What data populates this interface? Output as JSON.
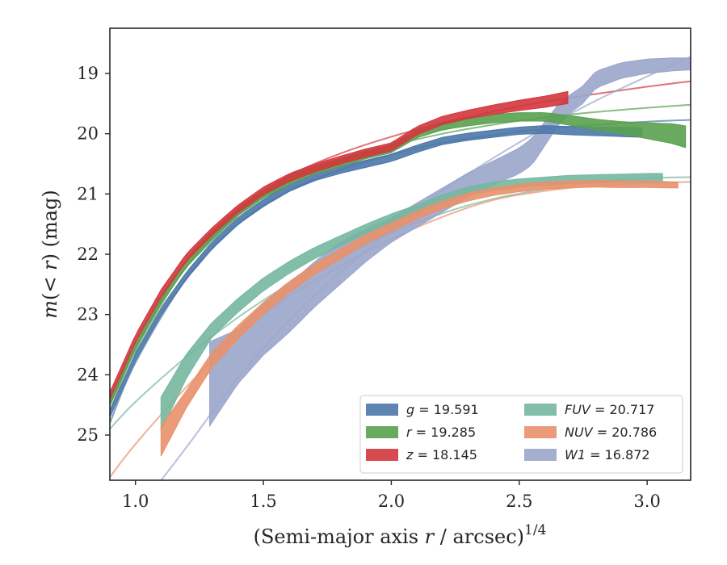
{
  "chart_data": {
    "type": "line",
    "xlabel": "(Semi-major axis r / arcsec)",
    "xlabel_italic_part": "r",
    "xlabel_exponent": "1/4",
    "ylabel": "m(< r) (mag)",
    "xlim": [
      0.9,
      3.17
    ],
    "ylim": [
      25.75,
      18.25
    ],
    "y_inverted": true,
    "x_ticks": [
      1.0,
      1.5,
      2.0,
      2.5,
      3.0
    ],
    "x_tick_labels": [
      "1.0",
      "1.5",
      "2.0",
      "2.5",
      "3.0"
    ],
    "y_ticks": [
      19,
      20,
      21,
      22,
      23,
      24,
      25
    ],
    "y_tick_labels": [
      "19",
      "20",
      "21",
      "22",
      "23",
      "24",
      "25"
    ],
    "grid": false,
    "legend_position": "lower-right",
    "legend_columns": 2,
    "series": [
      {
        "band": "g",
        "value": "19.591",
        "color": "#4c78a8",
        "profile": [
          [
            0.9,
            24.65
          ],
          [
            1.0,
            23.7
          ],
          [
            1.1,
            22.95
          ],
          [
            1.2,
            22.35
          ],
          [
            1.3,
            21.85
          ],
          [
            1.4,
            21.45
          ],
          [
            1.5,
            21.15
          ],
          [
            1.6,
            20.9
          ],
          [
            1.7,
            20.72
          ],
          [
            1.8,
            20.6
          ],
          [
            1.9,
            20.5
          ],
          [
            2.0,
            20.4
          ],
          [
            2.1,
            20.25
          ],
          [
            2.2,
            20.12
          ],
          [
            2.3,
            20.05
          ],
          [
            2.4,
            20.0
          ],
          [
            2.5,
            19.95
          ],
          [
            2.6,
            19.93
          ],
          [
            2.7,
            19.95
          ],
          [
            2.8,
            19.96
          ],
          [
            2.9,
            19.97
          ],
          [
            2.98,
            19.98
          ]
        ],
        "halfwidth": [
          [
            0.9,
            0.06
          ],
          [
            2.5,
            0.06
          ],
          [
            2.98,
            0.08
          ]
        ],
        "model": [
          [
            0.9,
            24.8
          ],
          [
            1.0,
            23.8
          ],
          [
            1.2,
            22.4
          ],
          [
            1.4,
            21.5
          ],
          [
            1.6,
            20.95
          ],
          [
            1.8,
            20.6
          ],
          [
            2.0,
            20.35
          ],
          [
            2.2,
            20.15
          ],
          [
            2.4,
            20.02
          ],
          [
            2.6,
            19.92
          ],
          [
            2.8,
            19.85
          ],
          [
            3.0,
            19.8
          ],
          [
            3.17,
            19.77
          ]
        ]
      },
      {
        "band": "r",
        "value": "19.285",
        "color": "#59a14f",
        "profile": [
          [
            0.9,
            24.45
          ],
          [
            1.0,
            23.5
          ],
          [
            1.1,
            22.75
          ],
          [
            1.2,
            22.15
          ],
          [
            1.3,
            21.7
          ],
          [
            1.4,
            21.3
          ],
          [
            1.5,
            21.0
          ],
          [
            1.6,
            20.78
          ],
          [
            1.7,
            20.6
          ],
          [
            1.8,
            20.48
          ],
          [
            1.9,
            20.35
          ],
          [
            2.0,
            20.25
          ],
          [
            2.1,
            20.0
          ],
          [
            2.2,
            19.87
          ],
          [
            2.3,
            19.8
          ],
          [
            2.4,
            19.75
          ],
          [
            2.5,
            19.72
          ],
          [
            2.6,
            19.72
          ],
          [
            2.7,
            19.78
          ],
          [
            2.8,
            19.85
          ],
          [
            2.9,
            19.9
          ],
          [
            3.0,
            19.95
          ],
          [
            3.1,
            20.0
          ],
          [
            3.15,
            20.05
          ]
        ],
        "halfwidth": [
          [
            0.9,
            0.06
          ],
          [
            2.6,
            0.07
          ],
          [
            2.9,
            0.1
          ],
          [
            3.15,
            0.18
          ]
        ],
        "model": [
          [
            0.9,
            24.6
          ],
          [
            1.0,
            23.6
          ],
          [
            1.2,
            22.2
          ],
          [
            1.4,
            21.35
          ],
          [
            1.6,
            20.8
          ],
          [
            1.8,
            20.45
          ],
          [
            2.0,
            20.2
          ],
          [
            2.2,
            20.0
          ],
          [
            2.4,
            19.85
          ],
          [
            2.6,
            19.73
          ],
          [
            2.8,
            19.64
          ],
          [
            3.0,
            19.57
          ],
          [
            3.17,
            19.52
          ]
        ]
      },
      {
        "band": "z",
        "value": "18.145",
        "color": "#d1373d",
        "profile": [
          [
            0.9,
            24.35
          ],
          [
            1.0,
            23.4
          ],
          [
            1.1,
            22.65
          ],
          [
            1.2,
            22.05
          ],
          [
            1.3,
            21.62
          ],
          [
            1.4,
            21.25
          ],
          [
            1.5,
            20.95
          ],
          [
            1.6,
            20.73
          ],
          [
            1.7,
            20.57
          ],
          [
            1.8,
            20.44
          ],
          [
            1.9,
            20.32
          ],
          [
            2.0,
            20.22
          ],
          [
            2.1,
            19.95
          ],
          [
            2.2,
            19.78
          ],
          [
            2.3,
            19.68
          ],
          [
            2.4,
            19.6
          ],
          [
            2.5,
            19.53
          ],
          [
            2.6,
            19.47
          ],
          [
            2.69,
            19.4
          ]
        ],
        "halfwidth": [
          [
            0.9,
            0.06
          ],
          [
            2.3,
            0.07
          ],
          [
            2.69,
            0.1
          ]
        ],
        "model": [
          [
            0.9,
            24.5
          ],
          [
            1.0,
            23.55
          ],
          [
            1.2,
            22.1
          ],
          [
            1.4,
            21.25
          ],
          [
            1.6,
            20.7
          ],
          [
            1.8,
            20.33
          ],
          [
            2.0,
            20.05
          ],
          [
            2.2,
            19.82
          ],
          [
            2.4,
            19.63
          ],
          [
            2.6,
            19.47
          ],
          [
            2.8,
            19.34
          ],
          [
            3.0,
            19.22
          ],
          [
            3.17,
            19.13
          ]
        ]
      },
      {
        "band": "FUV",
        "value": "20.717",
        "color": "#76b7a0",
        "profile": [
          [
            1.1,
            24.65
          ],
          [
            1.2,
            23.85
          ],
          [
            1.3,
            23.25
          ],
          [
            1.4,
            22.85
          ],
          [
            1.5,
            22.5
          ],
          [
            1.6,
            22.22
          ],
          [
            1.7,
            21.98
          ],
          [
            1.8,
            21.78
          ],
          [
            1.9,
            21.58
          ],
          [
            2.0,
            21.4
          ],
          [
            2.1,
            21.25
          ],
          [
            2.2,
            21.08
          ],
          [
            2.3,
            20.95
          ],
          [
            2.4,
            20.87
          ],
          [
            2.5,
            20.82
          ],
          [
            2.6,
            20.79
          ],
          [
            2.7,
            20.76
          ],
          [
            2.8,
            20.75
          ],
          [
            2.9,
            20.74
          ],
          [
            3.0,
            20.73
          ],
          [
            3.06,
            20.73
          ]
        ],
        "halfwidth": [
          [
            1.1,
            0.28
          ],
          [
            1.3,
            0.12
          ],
          [
            1.6,
            0.1
          ],
          [
            2.0,
            0.07
          ],
          [
            3.06,
            0.07
          ]
        ],
        "model": [
          [
            0.9,
            24.9
          ],
          [
            1.0,
            24.45
          ],
          [
            1.2,
            23.7
          ],
          [
            1.4,
            23.05
          ],
          [
            1.6,
            22.5
          ],
          [
            1.8,
            22.05
          ],
          [
            2.0,
            21.65
          ],
          [
            2.2,
            21.32
          ],
          [
            2.4,
            21.08
          ],
          [
            2.6,
            20.92
          ],
          [
            2.8,
            20.8
          ],
          [
            3.0,
            20.74
          ],
          [
            3.17,
            20.72
          ]
        ]
      },
      {
        "band": "NUV",
        "value": "20.786",
        "color": "#e8916b",
        "profile": [
          [
            1.1,
            25.1
          ],
          [
            1.2,
            24.4
          ],
          [
            1.3,
            23.75
          ],
          [
            1.4,
            23.3
          ],
          [
            1.5,
            22.9
          ],
          [
            1.6,
            22.55
          ],
          [
            1.7,
            22.25
          ],
          [
            1.8,
            22.0
          ],
          [
            1.9,
            21.75
          ],
          [
            2.0,
            21.55
          ],
          [
            2.1,
            21.35
          ],
          [
            2.2,
            21.18
          ],
          [
            2.3,
            21.05
          ],
          [
            2.4,
            20.96
          ],
          [
            2.5,
            20.9
          ],
          [
            2.6,
            20.86
          ],
          [
            2.7,
            20.84
          ],
          [
            2.8,
            20.83
          ],
          [
            2.9,
            20.84
          ],
          [
            3.0,
            20.84
          ],
          [
            3.12,
            20.85
          ]
        ],
        "halfwidth": [
          [
            1.1,
            0.25
          ],
          [
            1.2,
            0.14
          ],
          [
            1.5,
            0.1
          ],
          [
            2.0,
            0.07
          ],
          [
            3.12,
            0.05
          ]
        ],
        "model": [
          [
            0.9,
            25.7
          ],
          [
            1.0,
            25.15
          ],
          [
            1.2,
            24.2
          ],
          [
            1.4,
            23.35
          ],
          [
            1.6,
            22.7
          ],
          [
            1.8,
            22.2
          ],
          [
            2.0,
            21.75
          ],
          [
            2.2,
            21.38
          ],
          [
            2.4,
            21.1
          ],
          [
            2.6,
            20.95
          ],
          [
            2.8,
            20.86
          ],
          [
            3.0,
            20.82
          ],
          [
            3.17,
            20.8
          ]
        ]
      },
      {
        "band": "W1",
        "value": "16.872",
        "color": "#9aa6cb",
        "profile": [
          [
            1.29,
            24.15
          ],
          [
            1.4,
            23.7
          ],
          [
            1.5,
            23.25
          ],
          [
            1.6,
            22.9
          ],
          [
            1.7,
            22.5
          ],
          [
            1.8,
            22.15
          ],
          [
            1.9,
            21.85
          ],
          [
            2.0,
            21.6
          ],
          [
            2.1,
            21.35
          ],
          [
            2.2,
            21.1
          ],
          [
            2.3,
            20.85
          ],
          [
            2.4,
            20.65
          ],
          [
            2.5,
            20.45
          ],
          [
            2.55,
            20.3
          ],
          [
            2.6,
            20.0
          ],
          [
            2.65,
            19.7
          ],
          [
            2.7,
            19.5
          ],
          [
            2.75,
            19.35
          ],
          [
            2.8,
            19.1
          ],
          [
            2.9,
            18.95
          ],
          [
            3.0,
            18.88
          ],
          [
            3.1,
            18.85
          ],
          [
            3.17,
            18.84
          ]
        ],
        "halfwidth": [
          [
            1.29,
            0.7
          ],
          [
            1.4,
            0.45
          ],
          [
            1.6,
            0.4
          ],
          [
            1.8,
            0.35
          ],
          [
            2.0,
            0.2
          ],
          [
            2.4,
            0.2
          ],
          [
            2.55,
            0.22
          ],
          [
            2.7,
            0.15
          ],
          [
            3.17,
            0.1
          ]
        ],
        "model": [
          [
            1.0,
            26.3
          ],
          [
            1.2,
            25.2
          ],
          [
            1.4,
            24.05
          ],
          [
            1.6,
            23.1
          ],
          [
            1.8,
            22.3
          ],
          [
            2.0,
            21.6
          ],
          [
            2.2,
            20.95
          ],
          [
            2.4,
            20.4
          ],
          [
            2.6,
            19.9
          ],
          [
            2.8,
            19.45
          ],
          [
            3.0,
            19.05
          ],
          [
            3.17,
            18.72
          ]
        ]
      }
    ]
  }
}
